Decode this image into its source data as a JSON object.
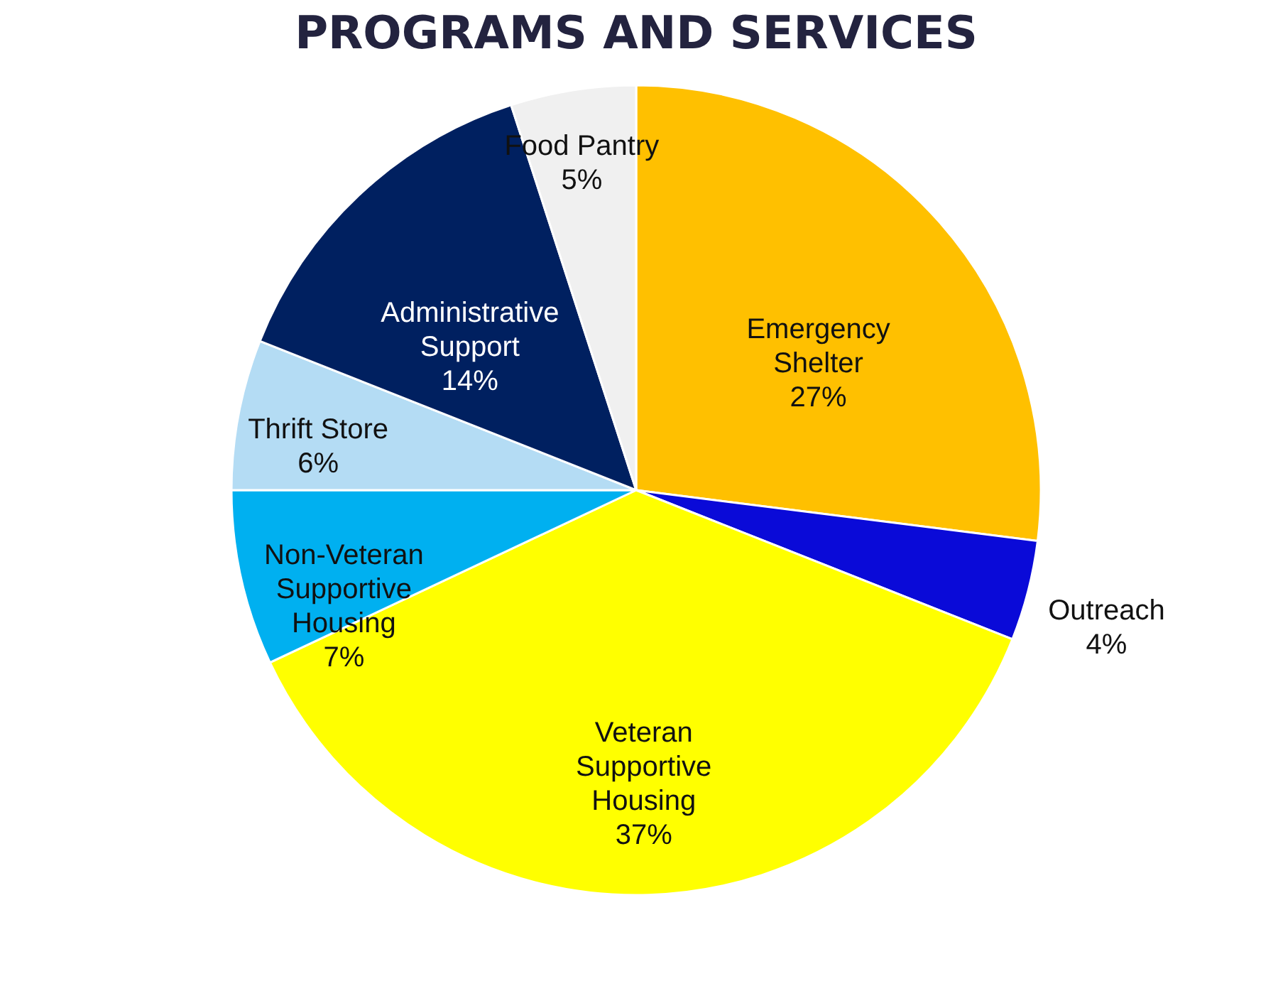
{
  "chart_data": {
    "type": "pie",
    "title": "PROGRAMS AND SERVICES",
    "categories": [
      "Emergency Shelter",
      "Outreach",
      "Veteran Supportive Housing",
      "Non-Veteran Supportive Housing",
      "Thrift Store",
      "Administrative Support",
      "Food Pantry"
    ],
    "values": [
      27,
      4,
      37,
      7,
      6,
      14,
      5
    ],
    "colors": [
      "#ffc000",
      "#0a0ad8",
      "#ffff00",
      "#00b0f0",
      "#b4dcf4",
      "#002060",
      "#f0f0f0"
    ],
    "data_labels": true,
    "value_labels": [
      "27%",
      "4%",
      "37%",
      "7%",
      "6%",
      "14%",
      "5%"
    ],
    "legend": false
  }
}
